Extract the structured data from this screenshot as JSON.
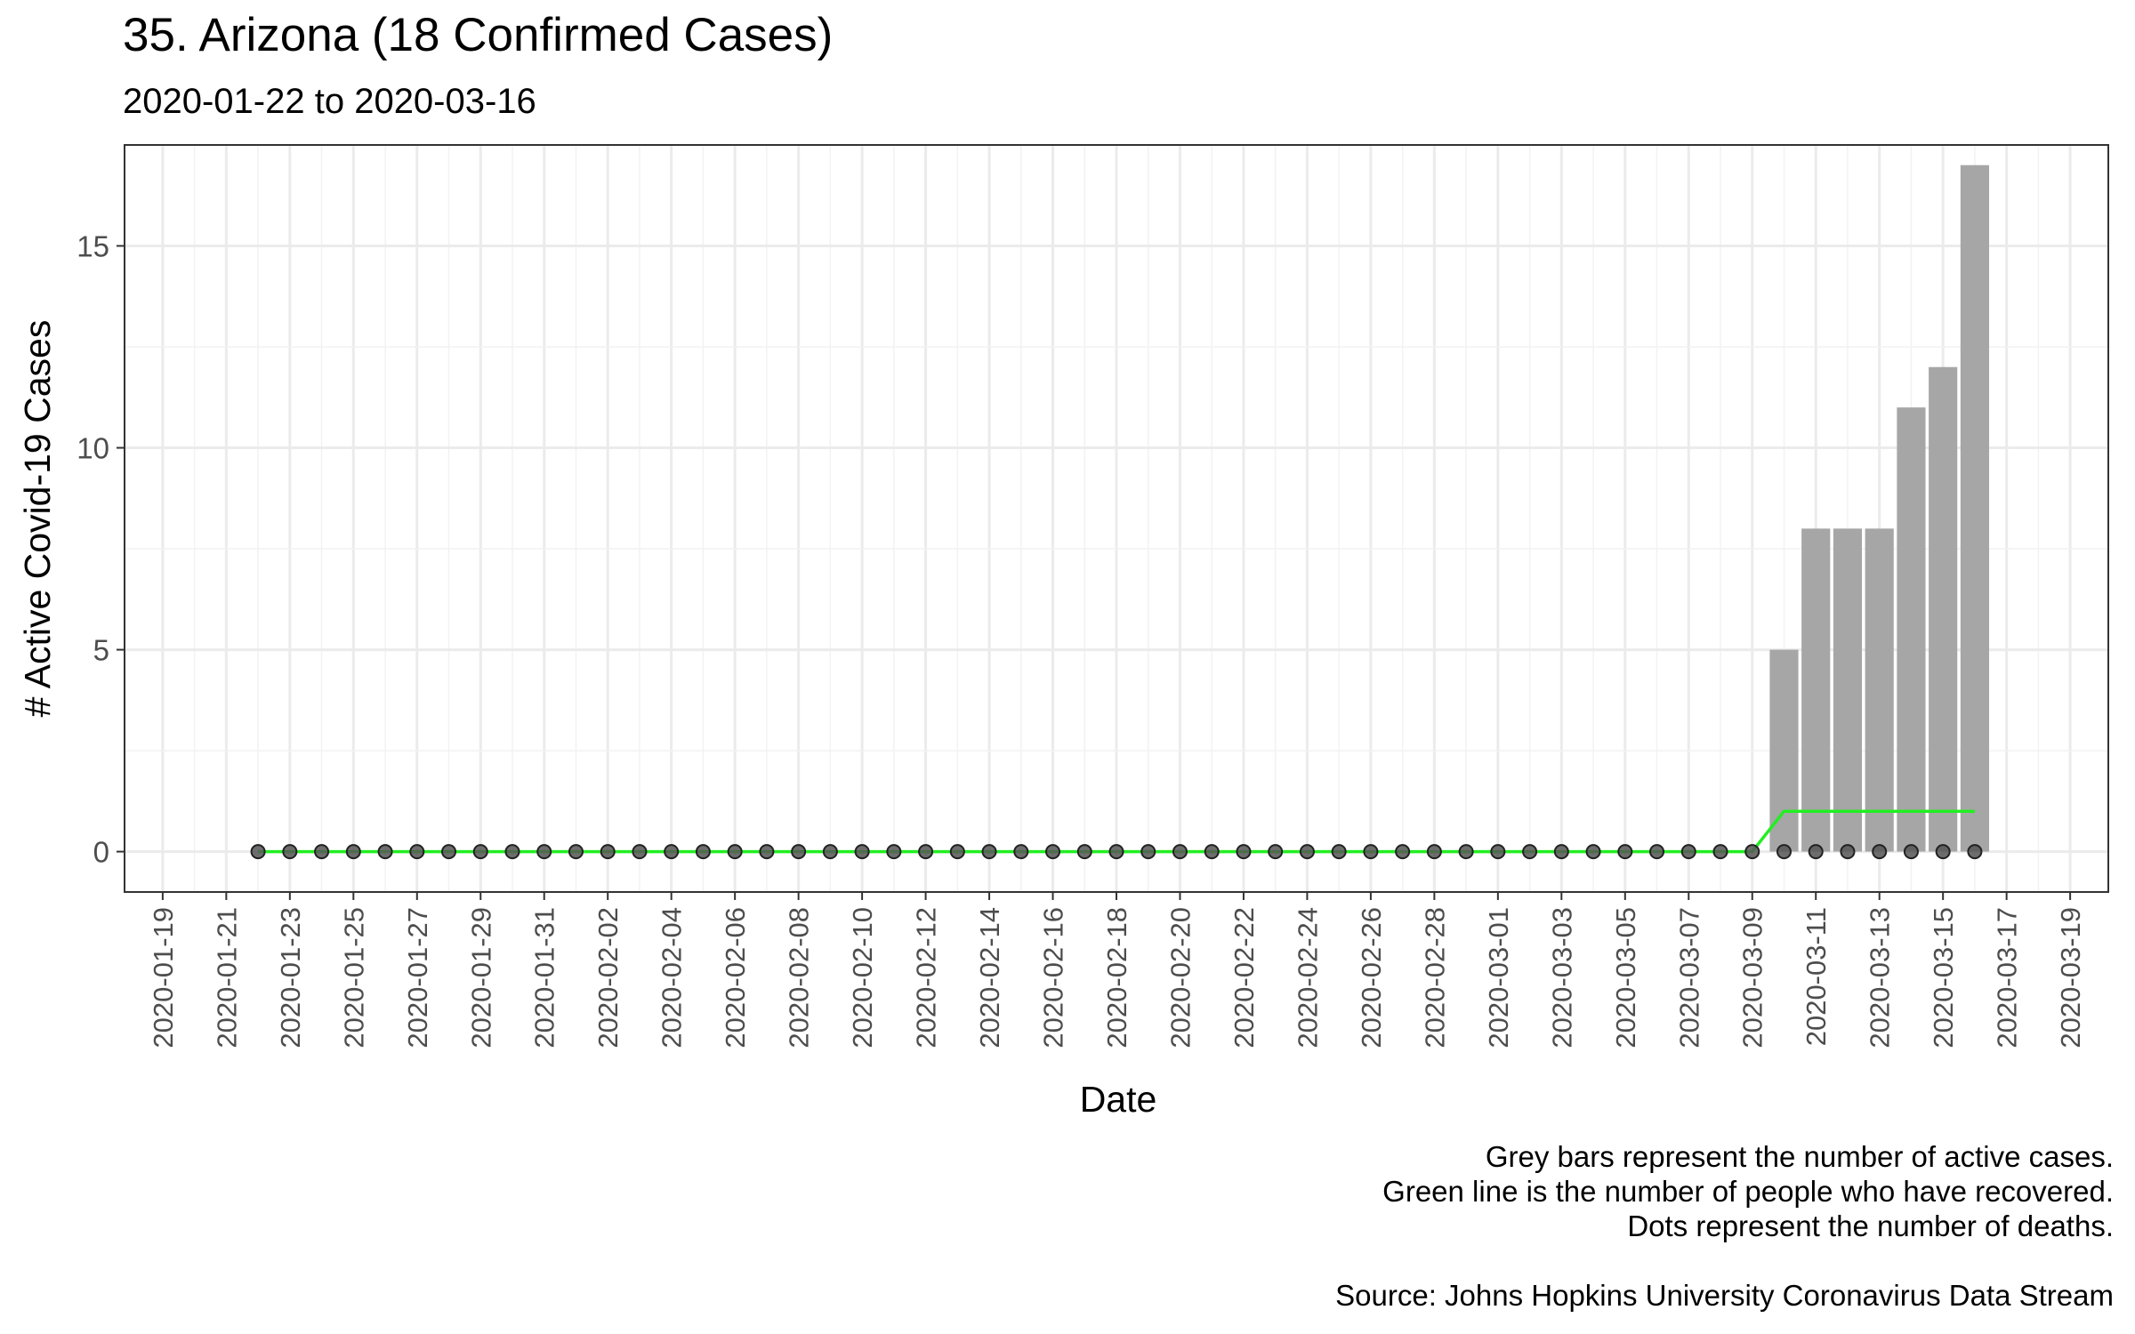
{
  "chart_data": {
    "type": "bar",
    "title": "35. Arizona (18 Confirmed Cases)",
    "subtitle": "2020-01-22 to 2020-03-16",
    "xlabel": "Date",
    "ylabel": "# Active Covid-19 Cases",
    "x_range": [
      "2020-01-19",
      "2020-03-19"
    ],
    "ylim": [
      -1,
      17.5
    ],
    "y_ticks": [
      0,
      5,
      10,
      15
    ],
    "x_tick_labels": [
      "2020-01-19",
      "2020-01-21",
      "2020-01-23",
      "2020-01-25",
      "2020-01-27",
      "2020-01-29",
      "2020-01-31",
      "2020-02-02",
      "2020-02-04",
      "2020-02-06",
      "2020-02-08",
      "2020-02-10",
      "2020-02-12",
      "2020-02-14",
      "2020-02-16",
      "2020-02-18",
      "2020-02-20",
      "2020-02-22",
      "2020-02-24",
      "2020-02-26",
      "2020-02-28",
      "2020-03-01",
      "2020-03-03",
      "2020-03-05",
      "2020-03-07",
      "2020-03-09",
      "2020-03-11",
      "2020-03-13",
      "2020-03-15",
      "2020-03-17",
      "2020-03-19"
    ],
    "grid": true,
    "legend": "none",
    "series": [
      {
        "kind": "bar",
        "color": "#a6a6a6",
        "points": [
          {
            "date": "2020-03-10",
            "value": 5
          },
          {
            "date": "2020-03-11",
            "value": 8
          },
          {
            "date": "2020-03-12",
            "value": 8
          },
          {
            "date": "2020-03-13",
            "value": 8
          },
          {
            "date": "2020-03-14",
            "value": 11
          },
          {
            "date": "2020-03-15",
            "value": 12
          },
          {
            "date": "2020-03-16",
            "value": 17
          }
        ]
      },
      {
        "kind": "line",
        "color": "#22ee22",
        "start": "2020-01-22",
        "values": [
          0,
          0,
          0,
          0,
          0,
          0,
          0,
          0,
          0,
          0,
          0,
          0,
          0,
          0,
          0,
          0,
          0,
          0,
          0,
          0,
          0,
          0,
          0,
          0,
          0,
          0,
          0,
          0,
          0,
          0,
          0,
          0,
          0,
          0,
          0,
          0,
          0,
          0,
          0,
          0,
          0,
          0,
          0,
          0,
          0,
          0,
          0,
          0,
          1,
          1,
          1,
          1,
          1,
          1,
          1
        ]
      },
      {
        "kind": "points",
        "color": "#555555",
        "start": "2020-01-22",
        "values": [
          0,
          0,
          0,
          0,
          0,
          0,
          0,
          0,
          0,
          0,
          0,
          0,
          0,
          0,
          0,
          0,
          0,
          0,
          0,
          0,
          0,
          0,
          0,
          0,
          0,
          0,
          0,
          0,
          0,
          0,
          0,
          0,
          0,
          0,
          0,
          0,
          0,
          0,
          0,
          0,
          0,
          0,
          0,
          0,
          0,
          0,
          0,
          0,
          0,
          0,
          0,
          0,
          0,
          0,
          0
        ]
      }
    ],
    "caption": [
      "Grey bars represent the number of active cases.",
      "Green line is the number of people who have recovered.",
      "Dots represent the number of deaths.",
      "",
      "Source: Johns Hopkins University Coronavirus Data Stream"
    ]
  }
}
